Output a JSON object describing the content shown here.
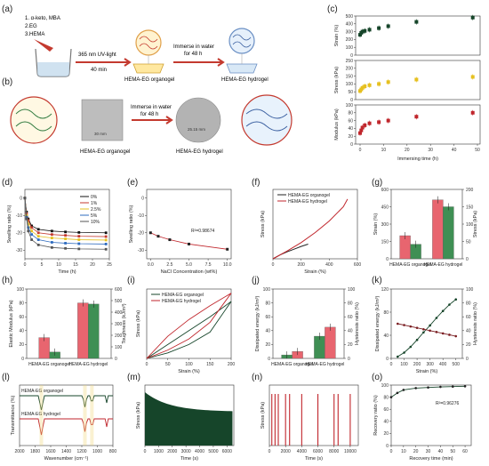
{
  "labels": {
    "a": "(a)",
    "b": "(b)",
    "c": "(c)",
    "d": "(d)",
    "e": "(e)",
    "f": "(f)",
    "g": "(g)",
    "h": "(h)",
    "i": "(i)",
    "j": "(j)",
    "k": "(k)",
    "l": "(l)",
    "m": "(m)",
    "n": "(n)",
    "o": "(o)"
  },
  "scheme_a": {
    "steps": [
      "1. α-keto, MBA",
      "2.EG",
      "3.HEMA"
    ],
    "uv_label": "365 nm UV-light",
    "uv_time": "40 min",
    "immerse_label": "Immerse in water",
    "immerse_time": "for 48 h",
    "organogel": "HEMA-EG organogel",
    "hydrogel": "HEMA-EG hydrogel"
  },
  "scheme_b": {
    "immerse_label": "Immerse in water",
    "immerse_time": "for 48 h",
    "size_before": "30 mm",
    "size_after": "25.15 mm",
    "organogel": "HEMA-EG organogel",
    "hydrogel": "HEMA-EG hydrogel"
  },
  "colors": {
    "green": "#1f6b3a",
    "red": "#c0262c",
    "darkgreen": "#16452a",
    "yellow": "#e6c020",
    "pink": "#e8656f",
    "lightgreen": "#3f8f54"
  },
  "chart_data": [
    {
      "id": "c",
      "type": "scatter",
      "xlabel": "Immersing time (h)",
      "x_ticks": [
        "0",
        "10",
        "20",
        "30",
        "40",
        "50"
      ],
      "xlim": [
        0,
        50
      ],
      "x": [
        0,
        0.5,
        1,
        2,
        4,
        8,
        12,
        24,
        48
      ],
      "series": [
        {
          "name": "",
          "ylabel": "Strain (%)",
          "ylim": [
            0,
            500
          ],
          "ticks": [
            "0",
            "100",
            "200",
            "300",
            "400",
            "500"
          ],
          "values": [
            260,
            285,
            300,
            310,
            325,
            345,
            370,
            425,
            480
          ]
        },
        {
          "name": "",
          "ylabel": "Stress (kPa)",
          "ylim": [
            0,
            250
          ],
          "ticks": [
            "0",
            "50",
            "100",
            "150",
            "200",
            "250"
          ],
          "values": [
            55,
            65,
            75,
            85,
            92,
            100,
            112,
            128,
            145
          ]
        },
        {
          "name": "",
          "ylabel": "Modulus (kPa)",
          "ylim": [
            0,
            100
          ],
          "ticks": [
            "0",
            "20",
            "40",
            "60",
            "80",
            "100"
          ],
          "values": [
            28,
            35,
            42,
            48,
            53,
            56,
            60,
            70,
            80
          ]
        }
      ]
    },
    {
      "id": "d",
      "type": "line",
      "xlabel": "Time (h)",
      "ylabel": "Swelling ratio (%)",
      "x_ticks": [
        "0",
        "5",
        "10",
        "15",
        "20",
        "25"
      ],
      "y_ticks": [
        "0",
        "-10",
        "-20",
        "-30"
      ],
      "xlim": [
        0,
        25
      ],
      "ylim": [
        -35,
        5
      ],
      "x": [
        0,
        0.5,
        1,
        2,
        4,
        8,
        12,
        16,
        24
      ],
      "series": [
        {
          "name": "0%",
          "values": [
            0,
            -8,
            -12,
            -16,
            -18,
            -19,
            -19.5,
            -19.8,
            -20
          ]
        },
        {
          "name": "1%",
          "values": [
            0,
            -9,
            -13,
            -17,
            -20,
            -21,
            -21.5,
            -22,
            -22.2
          ]
        },
        {
          "name": "2.5%",
          "values": [
            0,
            -10,
            -15,
            -19,
            -22,
            -23,
            -23.5,
            -24,
            -24.2
          ]
        },
        {
          "name": "5%",
          "values": [
            0,
            -11,
            -17,
            -21,
            -24,
            -25.5,
            -26,
            -26.3,
            -26.5
          ]
        },
        {
          "name": "10%",
          "values": [
            0,
            -12,
            -19,
            -24,
            -27,
            -28.5,
            -29,
            -29.3,
            -29.5
          ]
        }
      ]
    },
    {
      "id": "e",
      "type": "scatter",
      "xlabel": "NaCl Concentration (wt%)",
      "ylabel": "Swelling ratio (%)",
      "x_ticks": [
        "0.0",
        "2.5",
        "5.0",
        "7.5",
        "10.0"
      ],
      "y_ticks": [
        "0",
        "-10",
        "-20",
        "-30"
      ],
      "xlim": [
        -0.5,
        10.5
      ],
      "ylim": [
        -35,
        5
      ],
      "x": [
        0,
        1,
        2.5,
        5,
        10
      ],
      "values": [
        -20,
        -22,
        -24,
        -26.5,
        -29.5
      ],
      "annotation": "R²=0.98674"
    },
    {
      "id": "f",
      "type": "line",
      "xlabel": "Strain (%)",
      "ylabel": "Stress (kPa)",
      "x_ticks": [
        "0",
        "200",
        "400",
        "600"
      ],
      "xlim": [
        0,
        600
      ],
      "ylim": [
        0,
        180
      ],
      "series": [
        {
          "name": "HEMA-EG organogel",
          "x": [
            0,
            50,
            100,
            150,
            200,
            250
          ],
          "values": [
            0,
            10,
            18,
            25,
            32,
            38
          ]
        },
        {
          "name": "HEMA-EG hydrogel",
          "x": [
            0,
            100,
            200,
            300,
            400,
            500,
            530
          ],
          "values": [
            0,
            20,
            42,
            68,
            98,
            135,
            155
          ]
        }
      ]
    },
    {
      "id": "g",
      "type": "bar",
      "categories": [
        "HEMA-EG organogel",
        "HEMA-EG hydrogel"
      ],
      "y1label": "Strain (%)",
      "y2label": "Stress (kPa)",
      "y1_ticks": [
        "0",
        "150",
        "300",
        "450",
        "600"
      ],
      "y2_ticks": [
        "0",
        "50",
        "100",
        "150",
        "200"
      ],
      "y1lim": [
        0,
        600
      ],
      "y2lim": [
        0,
        200
      ],
      "series": [
        {
          "name": "Strain (%)",
          "axis": "left",
          "values": [
            200,
            510
          ]
        },
        {
          "name": "Stress (kPa)",
          "axis": "right",
          "values": [
            42,
            150
          ]
        }
      ]
    },
    {
      "id": "h",
      "type": "bar",
      "categories": [
        "HEMA-EG organogel",
        "HEMA-EG hydrogel"
      ],
      "y1label": "Elastic Modulus (kPa)",
      "y2label": "Toughness (kJ/m³)",
      "y1_ticks": [
        "0",
        "20",
        "40",
        "60",
        "80",
        "100"
      ],
      "y2_ticks": [
        "0",
        "100",
        "200",
        "300",
        "400",
        "500",
        "600"
      ],
      "y1lim": [
        0,
        100
      ],
      "y2lim": [
        0,
        600
      ],
      "series": [
        {
          "name": "Elastic Modulus",
          "axis": "left",
          "values": [
            30,
            80
          ]
        },
        {
          "name": "Toughness",
          "axis": "right",
          "values": [
            55,
            470
          ]
        }
      ]
    },
    {
      "id": "i",
      "type": "line",
      "xlabel": "Strain (%)",
      "ylabel": "Stress (kPa)",
      "x_ticks": [
        "0",
        "50",
        "100",
        "150",
        "200"
      ],
      "xlim": [
        0,
        200
      ],
      "ylim": [
        0,
        50
      ],
      "series": [
        {
          "name": "HEMA-EG organogel",
          "load": [
            [
              0,
              0
            ],
            [
              50,
              10
            ],
            [
              100,
              20
            ],
            [
              150,
              30
            ],
            [
              200,
              41
            ]
          ],
          "unload": [
            [
              0,
              0
            ],
            [
              50,
              4
            ],
            [
              100,
              10
            ],
            [
              150,
              19
            ],
            [
              200,
              41
            ]
          ]
        },
        {
          "name": "HEMA-EG hydrogel",
          "load": [
            [
              0,
              0
            ],
            [
              50,
              16
            ],
            [
              100,
              28
            ],
            [
              150,
              38
            ],
            [
              200,
              47
            ]
          ],
          "unload": [
            [
              0,
              0
            ],
            [
              50,
              6
            ],
            [
              100,
              14
            ],
            [
              150,
              26
            ],
            [
              200,
              47
            ]
          ]
        }
      ]
    },
    {
      "id": "j",
      "type": "bar",
      "categories": [
        "HEMA-EG organogel",
        "HEMA-EG hydrogel"
      ],
      "y1label": "Dissipated energy (kJ/m³)",
      "y2label": "Hysteresis ratio (%)",
      "y1_ticks": [
        "0",
        "20",
        "40",
        "60",
        "80",
        "100"
      ],
      "y2_ticks": [
        "0",
        "20",
        "40",
        "60",
        "80",
        "100"
      ],
      "y1lim": [
        0,
        100
      ],
      "y2lim": [
        0,
        100
      ],
      "series": [
        {
          "name": "Dissipated energy",
          "axis": "left",
          "values": [
            5,
            32
          ]
        },
        {
          "name": "Hysteresis ratio",
          "axis": "right",
          "values": [
            10,
            45
          ]
        }
      ]
    },
    {
      "id": "k",
      "type": "line",
      "xlabel": "Strain (%)",
      "y1label": "Dissipated energy (kJ/m³)",
      "y2label": "Hysteresis ratio (%)",
      "x_ticks": [
        "0",
        "100",
        "200",
        "300",
        "400",
        "500"
      ],
      "y1_ticks": [
        "0",
        "40",
        "80",
        "120"
      ],
      "y2_ticks": [
        "0",
        "20",
        "40",
        "60",
        "80",
        "100"
      ],
      "xlim": [
        0,
        550
      ],
      "y1lim": [
        0,
        120
      ],
      "y2lim": [
        0,
        100
      ],
      "x": [
        50,
        100,
        150,
        200,
        250,
        300,
        350,
        400,
        450,
        500
      ],
      "series": [
        {
          "name": "Dissipated energy",
          "axis": "left",
          "values": [
            3,
            10,
            20,
            32,
            45,
            57,
            70,
            82,
            93,
            102
          ]
        },
        {
          "name": "Hysteresis ratio",
          "axis": "right",
          "values": [
            50,
            48,
            46,
            44,
            42,
            40,
            38,
            36,
            34,
            32
          ]
        }
      ]
    },
    {
      "id": "l",
      "type": "line",
      "xlabel": "Wavenumber (cm⁻¹)",
      "ylabel": "Transmittance (%)",
      "x_ticks": [
        "2000",
        "1800",
        "1600",
        "1400",
        "1200",
        "1000",
        "800"
      ],
      "xlim": [
        2000,
        800
      ],
      "series": [
        {
          "name": "HEMA-EG organogel"
        },
        {
          "name": "HEMA-EG hydrogel"
        }
      ]
    },
    {
      "id": "m",
      "type": "area",
      "xlabel": "Time (s)",
      "ylabel": "Stress (kPa)",
      "x_ticks": [
        "0",
        "1000",
        "2000",
        "3000",
        "4000",
        "5000",
        "6000"
      ],
      "xlim": [
        0,
        6500
      ]
    },
    {
      "id": "n",
      "type": "line",
      "xlabel": "Time (s)",
      "ylabel": "Stress (kPa)",
      "x_ticks": [
        "0",
        "2000",
        "4000",
        "6000",
        "8000",
        "10000"
      ],
      "xlim": [
        0,
        11000
      ],
      "peaks_x": [
        300,
        700,
        1100,
        2000,
        2500,
        4000,
        6000,
        8000,
        8500,
        10000
      ]
    },
    {
      "id": "o",
      "type": "line",
      "xlabel": "Recovery time (min)",
      "ylabel": "Recovery ratio (%)",
      "x_ticks": [
        "0",
        "10",
        "20",
        "30",
        "40",
        "50",
        "60"
      ],
      "y_ticks": [
        "0",
        "20",
        "40",
        "60",
        "80",
        "100"
      ],
      "xlim": [
        0,
        65
      ],
      "ylim": [
        0,
        100
      ],
      "x": [
        0,
        5,
        10,
        20,
        30,
        40,
        50,
        60
      ],
      "values": [
        80,
        87,
        92,
        95,
        96,
        97,
        97.5,
        98
      ],
      "annotation": "R²=0.96276"
    }
  ]
}
